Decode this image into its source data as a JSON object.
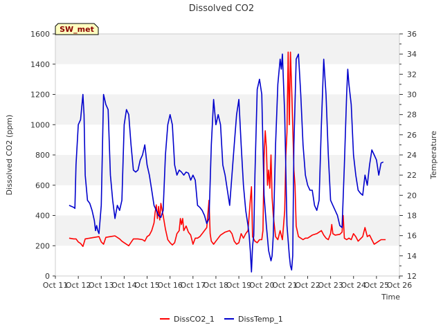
{
  "chart_data": {
    "type": "line",
    "title": "Dissolved CO2",
    "xlabel": "Time",
    "ylabel_left": "Dissolved CO2 (ppm)",
    "ylabel_right": "Temperature",
    "station_tag": "SW_met",
    "x_ticks": [
      "Oct 11",
      "Oct 12",
      "Oct 13",
      "Oct 14",
      "Oct 15",
      "Oct 16",
      "Oct 17",
      "Oct 18",
      "Oct 19",
      "Oct 20",
      "Oct 21",
      "Oct 22",
      "Oct 23",
      "Oct 24",
      "Oct 25",
      "Oct 26"
    ],
    "x_range_days": [
      11,
      26
    ],
    "y_left": {
      "range": [
        0,
        1600
      ],
      "ticks": [
        0,
        200,
        400,
        600,
        800,
        1000,
        1200,
        1400,
        1600
      ]
    },
    "y_right": {
      "range": [
        12,
        36
      ],
      "ticks": [
        12,
        14,
        16,
        18,
        20,
        22,
        24,
        26,
        28,
        30,
        32,
        34,
        36
      ]
    },
    "grid": "horizontal bands",
    "legend_position": "bottom",
    "colors": {
      "DissCO2_1": "#ff0000",
      "DissTemp_1": "#0000cc",
      "band": "#f2f2f2"
    },
    "series": [
      {
        "name": "DissCO2_1",
        "axis": "left",
        "points": [
          [
            11.6,
            250
          ],
          [
            11.8,
            245
          ],
          [
            11.9,
            245
          ],
          [
            12.0,
            225
          ],
          [
            12.1,
            215
          ],
          [
            12.2,
            195
          ],
          [
            12.3,
            245
          ],
          [
            12.5,
            250
          ],
          [
            12.7,
            255
          ],
          [
            12.9,
            260
          ],
          [
            13.0,
            225
          ],
          [
            13.1,
            210
          ],
          [
            13.2,
            255
          ],
          [
            13.4,
            260
          ],
          [
            13.6,
            265
          ],
          [
            13.8,
            245
          ],
          [
            13.9,
            230
          ],
          [
            14.0,
            220
          ],
          [
            14.2,
            200
          ],
          [
            14.4,
            245
          ],
          [
            14.6,
            245
          ],
          [
            14.8,
            240
          ],
          [
            14.9,
            230
          ],
          [
            15.0,
            260
          ],
          [
            15.1,
            270
          ],
          [
            15.2,
            300
          ],
          [
            15.3,
            350
          ],
          [
            15.35,
            420
          ],
          [
            15.4,
            470
          ],
          [
            15.45,
            380
          ],
          [
            15.5,
            460
          ],
          [
            15.55,
            370
          ],
          [
            15.6,
            480
          ],
          [
            15.7,
            400
          ],
          [
            15.8,
            310
          ],
          [
            15.9,
            240
          ],
          [
            16.0,
            220
          ],
          [
            16.1,
            205
          ],
          [
            16.2,
            220
          ],
          [
            16.3,
            280
          ],
          [
            16.4,
            300
          ],
          [
            16.45,
            380
          ],
          [
            16.5,
            340
          ],
          [
            16.55,
            380
          ],
          [
            16.6,
            300
          ],
          [
            16.7,
            330
          ],
          [
            16.8,
            290
          ],
          [
            16.9,
            270
          ],
          [
            17.0,
            210
          ],
          [
            17.1,
            250
          ],
          [
            17.2,
            250
          ],
          [
            17.3,
            260
          ],
          [
            17.4,
            280
          ],
          [
            17.5,
            300
          ],
          [
            17.6,
            320
          ],
          [
            17.7,
            500
          ],
          [
            17.75,
            280
          ],
          [
            17.8,
            230
          ],
          [
            17.9,
            210
          ],
          [
            18.0,
            230
          ],
          [
            18.2,
            270
          ],
          [
            18.4,
            290
          ],
          [
            18.6,
            300
          ],
          [
            18.7,
            280
          ],
          [
            18.8,
            230
          ],
          [
            18.9,
            210
          ],
          [
            19.0,
            220
          ],
          [
            19.1,
            280
          ],
          [
            19.2,
            250
          ],
          [
            19.3,
            280
          ],
          [
            19.4,
            300
          ],
          [
            19.5,
            500
          ],
          [
            19.55,
            590
          ],
          [
            19.6,
            260
          ],
          [
            19.7,
            230
          ],
          [
            19.8,
            220
          ],
          [
            19.9,
            240
          ],
          [
            20.0,
            240
          ],
          [
            20.05,
            300
          ],
          [
            20.1,
            780
          ],
          [
            20.15,
            960
          ],
          [
            20.2,
            850
          ],
          [
            20.25,
            600
          ],
          [
            20.3,
            700
          ],
          [
            20.35,
            580
          ],
          [
            20.4,
            800
          ],
          [
            20.45,
            520
          ],
          [
            20.5,
            400
          ],
          [
            20.6,
            260
          ],
          [
            20.7,
            240
          ],
          [
            20.8,
            300
          ],
          [
            20.9,
            240
          ],
          [
            21.0,
            430
          ],
          [
            21.05,
            800
          ],
          [
            21.1,
            950
          ],
          [
            21.15,
            1480
          ],
          [
            21.2,
            1000
          ],
          [
            21.25,
            1480
          ],
          [
            21.3,
            1250
          ],
          [
            21.35,
            1000
          ],
          [
            21.4,
            700
          ],
          [
            21.45,
            600
          ],
          [
            21.5,
            330
          ],
          [
            21.6,
            260
          ],
          [
            21.7,
            250
          ],
          [
            21.8,
            240
          ],
          [
            21.9,
            250
          ],
          [
            22.0,
            250
          ],
          [
            22.2,
            270
          ],
          [
            22.4,
            280
          ],
          [
            22.6,
            300
          ],
          [
            22.7,
            270
          ],
          [
            22.8,
            250
          ],
          [
            22.9,
            240
          ],
          [
            23.0,
            280
          ],
          [
            23.05,
            340
          ],
          [
            23.1,
            280
          ],
          [
            23.2,
            270
          ],
          [
            23.4,
            275
          ],
          [
            23.5,
            290
          ],
          [
            23.55,
            400
          ],
          [
            23.6,
            250
          ],
          [
            23.7,
            240
          ],
          [
            23.8,
            250
          ],
          [
            23.9,
            240
          ],
          [
            24.0,
            280
          ],
          [
            24.1,
            260
          ],
          [
            24.2,
            230
          ],
          [
            24.4,
            260
          ],
          [
            24.5,
            320
          ],
          [
            24.6,
            260
          ],
          [
            24.7,
            270
          ],
          [
            24.8,
            240
          ],
          [
            24.9,
            210
          ],
          [
            25.0,
            220
          ],
          [
            25.1,
            230
          ],
          [
            25.2,
            240
          ],
          [
            25.4,
            240
          ]
        ]
      },
      {
        "name": "DissTemp_1",
        "axis": "right",
        "points": [
          [
            11.6,
            19
          ],
          [
            11.8,
            18.8
          ],
          [
            11.85,
            18.7
          ],
          [
            11.9,
            23
          ],
          [
            12.0,
            27
          ],
          [
            12.1,
            27.5
          ],
          [
            12.2,
            30
          ],
          [
            12.25,
            28
          ],
          [
            12.3,
            22
          ],
          [
            12.4,
            19.5
          ],
          [
            12.5,
            19.2
          ],
          [
            12.6,
            18.5
          ],
          [
            12.7,
            17.5
          ],
          [
            12.75,
            16.5
          ],
          [
            12.8,
            17
          ],
          [
            12.85,
            16.5
          ],
          [
            12.9,
            16.2
          ],
          [
            13.0,
            19
          ],
          [
            13.1,
            30
          ],
          [
            13.2,
            29
          ],
          [
            13.3,
            28.5
          ],
          [
            13.4,
            22
          ],
          [
            13.5,
            19.5
          ],
          [
            13.6,
            17.7
          ],
          [
            13.7,
            19
          ],
          [
            13.8,
            18.5
          ],
          [
            13.9,
            19.5
          ],
          [
            14.0,
            27
          ],
          [
            14.1,
            28.5
          ],
          [
            14.2,
            28
          ],
          [
            14.3,
            25
          ],
          [
            14.4,
            22.5
          ],
          [
            14.5,
            22.3
          ],
          [
            14.6,
            22.5
          ],
          [
            14.7,
            23.5
          ],
          [
            14.8,
            24
          ],
          [
            14.9,
            25
          ],
          [
            15.0,
            23
          ],
          [
            15.1,
            22
          ],
          [
            15.2,
            20.5
          ],
          [
            15.3,
            19
          ],
          [
            15.4,
            18.5
          ],
          [
            15.5,
            18
          ],
          [
            15.6,
            17.8
          ],
          [
            15.7,
            18.5
          ],
          [
            15.8,
            24
          ],
          [
            15.9,
            27
          ],
          [
            16.0,
            28
          ],
          [
            16.1,
            27
          ],
          [
            16.2,
            23
          ],
          [
            16.3,
            22
          ],
          [
            16.4,
            22.5
          ],
          [
            16.5,
            22.3
          ],
          [
            16.6,
            22
          ],
          [
            16.7,
            22.3
          ],
          [
            16.8,
            22.2
          ],
          [
            16.9,
            21.5
          ],
          [
            17.0,
            22
          ],
          [
            17.1,
            21.5
          ],
          [
            17.2,
            19
          ],
          [
            17.3,
            18.8
          ],
          [
            17.4,
            18.5
          ],
          [
            17.5,
            18
          ],
          [
            17.6,
            17.2
          ],
          [
            17.7,
            17.7
          ],
          [
            17.8,
            25
          ],
          [
            17.9,
            29.5
          ],
          [
            18.0,
            27
          ],
          [
            18.1,
            28
          ],
          [
            18.2,
            27
          ],
          [
            18.3,
            23
          ],
          [
            18.4,
            22
          ],
          [
            18.5,
            20.5
          ],
          [
            18.6,
            19
          ],
          [
            18.7,
            22
          ],
          [
            18.8,
            25
          ],
          [
            18.9,
            28
          ],
          [
            19.0,
            29.5
          ],
          [
            19.1,
            25
          ],
          [
            19.2,
            21
          ],
          [
            19.3,
            18.5
          ],
          [
            19.4,
            17
          ],
          [
            19.45,
            16
          ],
          [
            19.5,
            14.5
          ],
          [
            19.55,
            12.4
          ],
          [
            19.6,
            15
          ],
          [
            19.65,
            16
          ],
          [
            19.7,
            22
          ],
          [
            19.8,
            30.5
          ],
          [
            19.9,
            31.5
          ],
          [
            20.0,
            30
          ],
          [
            20.1,
            20
          ],
          [
            20.2,
            17
          ],
          [
            20.3,
            14.5
          ],
          [
            20.4,
            13.5
          ],
          [
            20.45,
            14
          ],
          [
            20.5,
            16
          ],
          [
            20.6,
            25
          ],
          [
            20.7,
            31
          ],
          [
            20.8,
            33.5
          ],
          [
            20.85,
            32.5
          ],
          [
            20.9,
            34
          ],
          [
            21.0,
            28
          ],
          [
            21.1,
            17
          ],
          [
            21.2,
            14
          ],
          [
            21.25,
            13
          ],
          [
            21.3,
            12.6
          ],
          [
            21.35,
            14
          ],
          [
            21.4,
            25
          ],
          [
            21.5,
            33.5
          ],
          [
            21.6,
            34
          ],
          [
            21.7,
            30
          ],
          [
            21.8,
            25
          ],
          [
            21.9,
            22
          ],
          [
            22.0,
            21
          ],
          [
            22.1,
            20.5
          ],
          [
            22.2,
            20.5
          ],
          [
            22.3,
            19
          ],
          [
            22.4,
            18.5
          ],
          [
            22.5,
            19.5
          ],
          [
            22.6,
            27
          ],
          [
            22.7,
            33.5
          ],
          [
            22.8,
            30
          ],
          [
            22.9,
            24
          ],
          [
            23.0,
            19.5
          ],
          [
            23.1,
            19
          ],
          [
            23.2,
            18.5
          ],
          [
            23.3,
            18
          ],
          [
            23.4,
            17
          ],
          [
            23.5,
            16.8
          ],
          [
            23.6,
            23
          ],
          [
            23.7,
            30
          ],
          [
            23.75,
            32.5
          ],
          [
            23.8,
            31
          ],
          [
            23.9,
            29
          ],
          [
            24.0,
            24
          ],
          [
            24.1,
            22
          ],
          [
            24.2,
            20.5
          ],
          [
            24.3,
            20.2
          ],
          [
            24.4,
            20
          ],
          [
            24.5,
            22
          ],
          [
            24.6,
            21
          ],
          [
            24.7,
            23
          ],
          [
            24.8,
            24.5
          ],
          [
            24.9,
            24
          ],
          [
            25.0,
            23.5
          ],
          [
            25.1,
            22
          ],
          [
            25.2,
            23.2
          ],
          [
            25.3,
            23.3
          ]
        ]
      }
    ]
  }
}
